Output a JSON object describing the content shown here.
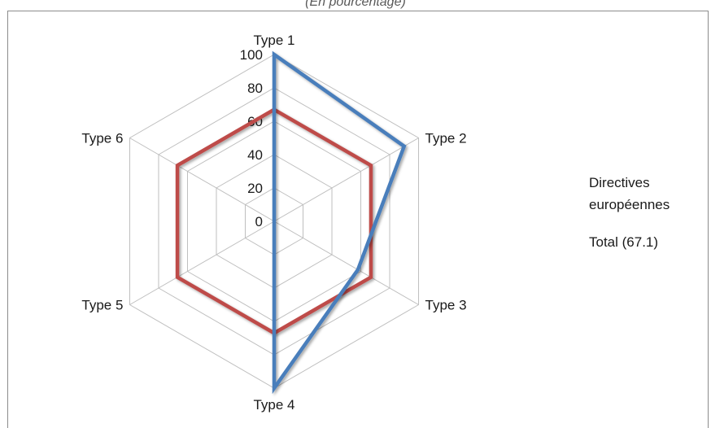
{
  "subtitle": "(En pourcentage)",
  "chart_data": {
    "type": "radar",
    "categories": [
      "Type 1",
      "Type 2",
      "Type 3",
      "Type 4",
      "Type 5",
      "Type 6"
    ],
    "rlim": [
      0,
      100
    ],
    "ticks": [
      0,
      20,
      40,
      60,
      80,
      100
    ],
    "grid": true,
    "legend": "right",
    "series": [
      {
        "name": "Directives européennes",
        "color": "#4a7ebb",
        "values": [
          100,
          90,
          58,
          100,
          0,
          0
        ]
      },
      {
        "name": "Total (67.1)",
        "color": "#be4b48",
        "values": [
          67,
          67,
          67,
          67,
          67,
          67
        ]
      }
    ]
  }
}
